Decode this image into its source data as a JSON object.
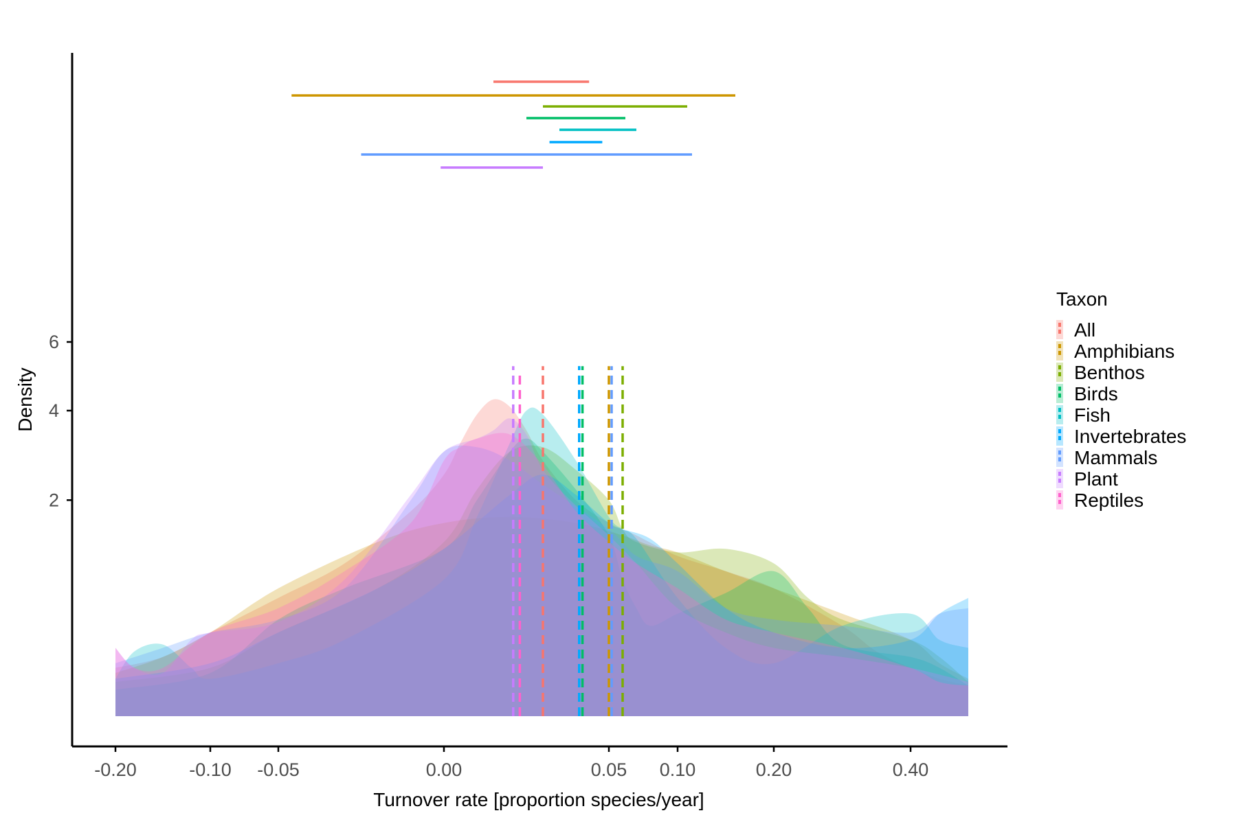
{
  "chart_data": {
    "type": "area",
    "xlabel": "Turnover rate [proportion species/year]",
    "ylabel": "Density",
    "x_scale": "pseudo-log (signed)",
    "x_ticks": [
      -0.2,
      -0.1,
      -0.05,
      0.0,
      0.05,
      0.1,
      0.2,
      0.4
    ],
    "x_tick_labels": [
      "-0.20",
      "-0.10",
      "-0.05",
      "0.00",
      "0.05",
      "0.10",
      "0.20",
      "0.40"
    ],
    "xlim": [
      -0.2,
      0.6
    ],
    "y_scale": "sqrt",
    "y_ticks": [
      2,
      4,
      6
    ],
    "y_tick_labels": [
      "2",
      "4",
      "6"
    ],
    "ylim": [
      0,
      7
    ],
    "grid": false,
    "legend": {
      "title": "Taxon",
      "position": "right",
      "entries": [
        "All",
        "Amphibians",
        "Benthos",
        "Birds",
        "Fish",
        "Invertebrates",
        "Mammals",
        "Plant",
        "Reptiles"
      ]
    },
    "series": [
      {
        "name": "All",
        "color": "#F8766D",
        "density": [
          [
            -0.2,
            0.1
          ],
          [
            -0.15,
            0.15
          ],
          [
            -0.1,
            0.3
          ],
          [
            -0.05,
            0.6
          ],
          [
            -0.03,
            1.0
          ],
          [
            -0.01,
            1.8
          ],
          [
            0.0,
            2.5
          ],
          [
            0.005,
            3.2
          ],
          [
            0.01,
            3.9
          ],
          [
            0.015,
            4.3
          ],
          [
            0.02,
            4.1
          ],
          [
            0.025,
            3.5
          ],
          [
            0.03,
            2.8
          ],
          [
            0.04,
            2.0
          ],
          [
            0.05,
            1.6
          ],
          [
            0.07,
            1.4
          ],
          [
            0.1,
            1.1
          ],
          [
            0.15,
            0.9
          ],
          [
            0.2,
            0.7
          ],
          [
            0.3,
            0.35
          ],
          [
            0.35,
            0.18
          ],
          [
            0.4,
            0.1
          ],
          [
            0.5,
            0.06
          ],
          [
            0.6,
            0.04
          ]
        ],
        "mean": 0.03,
        "ci": [
          0.015,
          0.044
        ]
      },
      {
        "name": "Amphibians",
        "color": "#CD9600",
        "density": [
          [
            -0.2,
            0.08
          ],
          [
            -0.15,
            0.15
          ],
          [
            -0.1,
            0.3
          ],
          [
            -0.05,
            0.7
          ],
          [
            -0.02,
            1.3
          ],
          [
            0.0,
            1.6
          ],
          [
            0.02,
            1.7
          ],
          [
            0.04,
            1.6
          ],
          [
            0.06,
            1.4
          ],
          [
            0.08,
            1.25
          ],
          [
            0.1,
            1.15
          ],
          [
            0.15,
            0.9
          ],
          [
            0.2,
            0.7
          ],
          [
            0.3,
            0.45
          ],
          [
            0.4,
            0.25
          ],
          [
            0.5,
            0.12
          ],
          [
            0.6,
            0.06
          ]
        ],
        "mean": 0.05,
        "ci": [
          -0.046,
          0.16
        ]
      },
      {
        "name": "Benthos",
        "color": "#7CAE00",
        "density": [
          [
            -0.2,
            0.05
          ],
          [
            -0.1,
            0.1
          ],
          [
            -0.05,
            0.3
          ],
          [
            -0.02,
            0.7
          ],
          [
            0.0,
            1.3
          ],
          [
            0.01,
            2.2
          ],
          [
            0.02,
            3.0
          ],
          [
            0.03,
            3.1
          ],
          [
            0.04,
            2.6
          ],
          [
            0.05,
            2.0
          ],
          [
            0.06,
            1.5
          ],
          [
            0.07,
            1.3
          ],
          [
            0.1,
            1.15
          ],
          [
            0.15,
            1.2
          ],
          [
            0.2,
            1.0
          ],
          [
            0.25,
            0.6
          ],
          [
            0.3,
            0.4
          ],
          [
            0.4,
            0.25
          ],
          [
            0.5,
            0.15
          ],
          [
            0.6,
            0.05
          ]
        ],
        "mean": 0.06,
        "ci": [
          0.03,
          0.11
        ]
      },
      {
        "name": "Birds",
        "color": "#00BE67",
        "density": [
          [
            -0.2,
            0.03
          ],
          [
            -0.1,
            0.08
          ],
          [
            -0.05,
            0.4
          ],
          [
            -0.03,
            0.7
          ],
          [
            0.0,
            1.2
          ],
          [
            0.01,
            2.0
          ],
          [
            0.02,
            3.0
          ],
          [
            0.025,
            3.3
          ],
          [
            0.03,
            3.0
          ],
          [
            0.04,
            2.2
          ],
          [
            0.05,
            1.4
          ],
          [
            0.06,
            0.8
          ],
          [
            0.07,
            0.5
          ],
          [
            0.08,
            0.35
          ],
          [
            0.1,
            0.45
          ],
          [
            0.15,
            0.65
          ],
          [
            0.2,
            0.9
          ],
          [
            0.25,
            0.5
          ],
          [
            0.3,
            0.22
          ],
          [
            0.4,
            0.15
          ],
          [
            0.5,
            0.1
          ],
          [
            0.6,
            0.04
          ]
        ],
        "mean": 0.042,
        "ci": [
          0.025,
          0.062
        ]
      },
      {
        "name": "Fish",
        "color": "#00BFC4",
        "density": [
          [
            -0.2,
            0.06
          ],
          [
            -0.18,
            0.18
          ],
          [
            -0.15,
            0.22
          ],
          [
            -0.12,
            0.1
          ],
          [
            -0.1,
            0.06
          ],
          [
            -0.05,
            0.12
          ],
          [
            -0.03,
            0.25
          ],
          [
            0.0,
            0.8
          ],
          [
            0.01,
            1.7
          ],
          [
            0.02,
            3.2
          ],
          [
            0.025,
            4.0
          ],
          [
            0.03,
            3.9
          ],
          [
            0.04,
            2.8
          ],
          [
            0.05,
            1.7
          ],
          [
            0.06,
            1.5
          ],
          [
            0.07,
            1.35
          ],
          [
            0.1,
            0.6
          ],
          [
            0.15,
            0.2
          ],
          [
            0.2,
            0.12
          ],
          [
            0.3,
            0.35
          ],
          [
            0.4,
            0.45
          ],
          [
            0.5,
            0.25
          ],
          [
            0.6,
            0.2
          ]
        ],
        "mean": 0.041,
        "ci": [
          0.035,
          0.07
        ]
      },
      {
        "name": "Invertebrates",
        "color": "#00A9FF",
        "density": [
          [
            -0.2,
            0.06
          ],
          [
            -0.1,
            0.12
          ],
          [
            -0.05,
            0.3
          ],
          [
            -0.02,
            0.7
          ],
          [
            0.0,
            1.2
          ],
          [
            0.02,
            2.1
          ],
          [
            0.03,
            2.5
          ],
          [
            0.04,
            2.1
          ],
          [
            0.05,
            1.6
          ],
          [
            0.06,
            1.5
          ],
          [
            0.08,
            1.35
          ],
          [
            0.1,
            1.0
          ],
          [
            0.15,
            0.5
          ],
          [
            0.2,
            0.3
          ],
          [
            0.3,
            0.2
          ],
          [
            0.4,
            0.25
          ],
          [
            0.5,
            0.45
          ],
          [
            0.6,
            0.6
          ]
        ],
        "mean": 0.041,
        "ci": [
          0.032,
          0.048
        ]
      },
      {
        "name": "Mammals",
        "color": "#619CFF",
        "density": [
          [
            -0.2,
            0.12
          ],
          [
            -0.15,
            0.2
          ],
          [
            -0.1,
            0.3
          ],
          [
            -0.05,
            0.4
          ],
          [
            -0.03,
            0.7
          ],
          [
            -0.01,
            2.0
          ],
          [
            0.0,
            3.0
          ],
          [
            0.01,
            3.1
          ],
          [
            0.02,
            2.8
          ],
          [
            0.03,
            2.3
          ],
          [
            0.05,
            1.5
          ],
          [
            0.07,
            1.1
          ],
          [
            0.1,
            0.9
          ],
          [
            0.15,
            0.5
          ],
          [
            0.2,
            0.4
          ],
          [
            0.3,
            0.35
          ],
          [
            0.4,
            0.3
          ],
          [
            0.5,
            0.45
          ],
          [
            0.6,
            0.5
          ]
        ],
        "mean": 0.052,
        "ci": [
          -0.025,
          0.115
        ]
      },
      {
        "name": "Plant",
        "color": "#C77CFF",
        "density": [
          [
            -0.2,
            0.2
          ],
          [
            -0.18,
            0.1
          ],
          [
            -0.15,
            0.08
          ],
          [
            -0.12,
            0.25
          ],
          [
            -0.1,
            0.3
          ],
          [
            -0.05,
            0.38
          ],
          [
            -0.03,
            0.8
          ],
          [
            -0.01,
            2.1
          ],
          [
            0.0,
            3.0
          ],
          [
            0.01,
            3.3
          ],
          [
            0.015,
            3.5
          ],
          [
            0.02,
            3.8
          ],
          [
            0.025,
            3.4
          ],
          [
            0.03,
            2.6
          ],
          [
            0.04,
            1.9
          ],
          [
            0.05,
            1.4
          ],
          [
            0.07,
            1.0
          ],
          [
            0.1,
            0.5
          ],
          [
            0.15,
            0.3
          ],
          [
            0.2,
            0.2
          ],
          [
            0.3,
            0.15
          ],
          [
            0.4,
            0.1
          ],
          [
            0.6,
            0.05
          ]
        ],
        "mean": 0.021,
        "ci": [
          -0.001,
          0.03
        ]
      },
      {
        "name": "Reptiles",
        "color": "#FF61CC",
        "density": [
          [
            -0.2,
            0.2
          ],
          [
            -0.18,
            0.1
          ],
          [
            -0.15,
            0.1
          ],
          [
            -0.1,
            0.3
          ],
          [
            -0.05,
            0.5
          ],
          [
            -0.03,
            0.9
          ],
          [
            -0.01,
            1.6
          ],
          [
            0.0,
            2.8
          ],
          [
            0.005,
            3.1
          ],
          [
            0.01,
            3.3
          ],
          [
            0.02,
            3.4
          ],
          [
            0.03,
            2.7
          ],
          [
            0.04,
            1.8
          ],
          [
            0.05,
            1.3
          ],
          [
            0.07,
            1.0
          ],
          [
            0.1,
            0.7
          ],
          [
            0.15,
            0.4
          ],
          [
            0.2,
            0.3
          ],
          [
            0.3,
            0.2
          ],
          [
            0.4,
            0.1
          ],
          [
            0.5,
            0.05
          ],
          [
            0.6,
            0.04
          ]
        ],
        "mean": 0.023,
        "ci": null
      }
    ]
  }
}
